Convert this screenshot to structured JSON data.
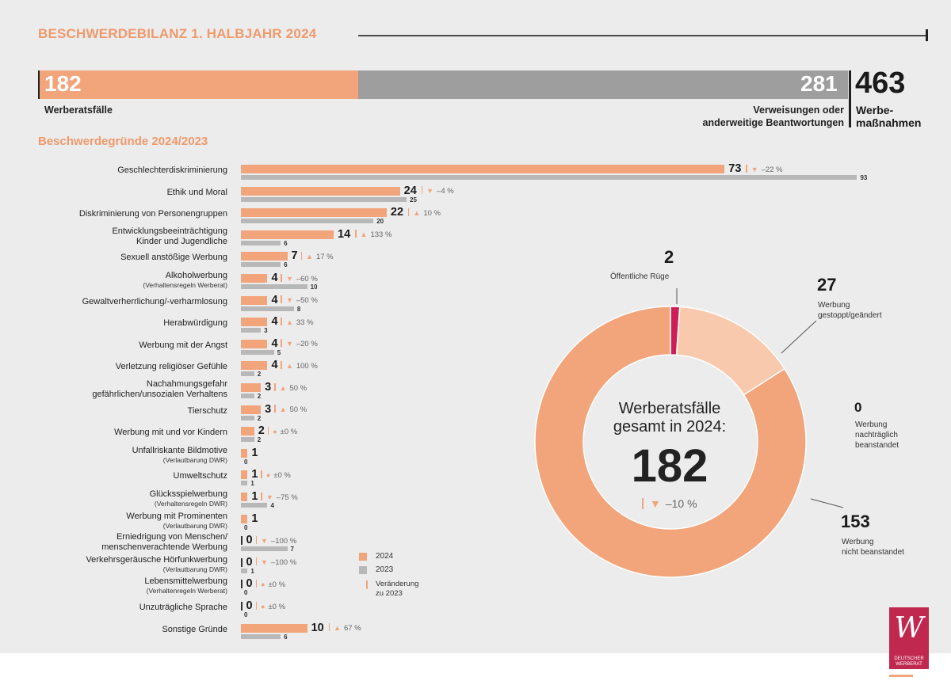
{
  "header": {
    "title": "BESCHWERDEBILANZ 1. HALBJAHR 2024"
  },
  "summary": {
    "werberatsfaelle_value": "182",
    "werberatsfaelle_label": "Werberatsfälle",
    "verweisungen_value": "281",
    "verweisungen_label_1": "Verweisungen oder",
    "verweisungen_label_2": "anderweitige Beantwortungen",
    "total_value": "463",
    "total_label_1": "Werbe-",
    "total_label_2": "maßnahmen",
    "colors": {
      "werberat": "#f2a47a",
      "verweisungen": "#9e9e9e"
    }
  },
  "section_title": "Beschwerdegründe 2024/2023",
  "legend": {
    "y2024": "2024",
    "y2023": "2023",
    "change_1": "Veränderung",
    "change_2": "zu 2023"
  },
  "chart_data": [
    {
      "type": "bar",
      "title": "Beschwerdegründe 2024/2023",
      "orientation": "horizontal",
      "categories": [
        "Geschlechterdiskriminierung",
        "Ethik und Moral",
        "Diskriminierung von Personengruppen",
        "Entwicklungsbeeinträchtigung Kinder und Jugendliche",
        "Sexuell anstößige Werbung",
        "Alkoholwerbung (Verhaltensregeln Werberat)",
        "Gewaltverherrlichung/-verharmlosung",
        "Herabwürdigung",
        "Werbung mit der Angst",
        "Verletzung religiöser Gefühle",
        "Nachahmungsgefahr gefährlichen/unsozialen Verhaltens",
        "Tierschutz",
        "Werbung mit und vor Kindern",
        "Unfallriskante Bildmotive (Verlautbarung DWR)",
        "Umweltschutz",
        "Glücksspielwerbung (Verhaltensregeln DWR)",
        "Werbung mit Prominenten (Verlautbarung DWR)",
        "Erniedrigung von Menschen/ menschenverachtende Werbung",
        "Verkehrsgeräusche Hörfunkwerbung (Verlautbarung DWR)",
        "Lebensmittelwerbung (Verhaltenregeln Werberat)",
        "Unzuträgliche Sprache",
        "Sonstige Gründe"
      ],
      "series": [
        {
          "name": "2024",
          "color": "#f2a47a",
          "values": [
            73,
            24,
            22,
            14,
            7,
            4,
            4,
            4,
            4,
            4,
            3,
            3,
            2,
            1,
            1,
            1,
            1,
            0,
            0,
            0,
            0,
            10
          ]
        },
        {
          "name": "2023",
          "color": "#b8b8b8",
          "values": [
            93,
            25,
            20,
            6,
            6,
            10,
            8,
            3,
            5,
            2,
            2,
            2,
            2,
            0,
            1,
            4,
            0,
            7,
            1,
            0,
            0,
            6
          ]
        }
      ],
      "changes": [
        {
          "dir": "down",
          "text": "–22 %"
        },
        {
          "dir": "down",
          "text": "–4 %"
        },
        {
          "dir": "up",
          "text": "10 %"
        },
        {
          "dir": "up",
          "text": "133 %"
        },
        {
          "dir": "up",
          "text": "17 %"
        },
        {
          "dir": "down",
          "text": "–60 %"
        },
        {
          "dir": "down",
          "text": "–50 %"
        },
        {
          "dir": "up",
          "text": "33 %"
        },
        {
          "dir": "down",
          "text": "–20 %"
        },
        {
          "dir": "up",
          "text": "100 %"
        },
        {
          "dir": "up",
          "text": "50 %"
        },
        {
          "dir": "up",
          "text": "50 %"
        },
        {
          "dir": "same",
          "text": "±0 %"
        },
        null,
        {
          "dir": "same",
          "text": "±0 %"
        },
        {
          "dir": "down",
          "text": "–75 %"
        },
        null,
        {
          "dir": "down",
          "text": "–100 %"
        },
        {
          "dir": "down",
          "text": "–100 %"
        },
        {
          "dir": "same",
          "text": "±0 %"
        },
        {
          "dir": "same",
          "text": "±0 %"
        },
        {
          "dir": "up",
          "text": "67 %"
        }
      ]
    },
    {
      "type": "pie",
      "variant": "donut",
      "center_title_1": "Werberatsfälle",
      "center_title_2": "gesamt in 2024:",
      "center_value": "182",
      "center_change": "–10 %",
      "center_change_dir": "down",
      "slices": [
        {
          "value": 2,
          "label_1": "Öffentliche Rüge",
          "label_2": "",
          "color": "#cc1f57"
        },
        {
          "value": 27,
          "label_1": "Werbung",
          "label_2": "gestoppt/geändert",
          "color": "#f8c9ac"
        },
        {
          "value": 0,
          "label_1": "Werbung",
          "label_2": "nachträglich",
          "label_3": "beanstandet",
          "color": "#f2a47a"
        },
        {
          "value": 153,
          "label_1": "Werbung",
          "label_2": "nicht beanstandet",
          "color": "#f2a47a"
        }
      ]
    }
  ],
  "logo": {
    "line1": "DEUTSCHER",
    "line2": "WERBERAT",
    "color": "#c0284f"
  }
}
